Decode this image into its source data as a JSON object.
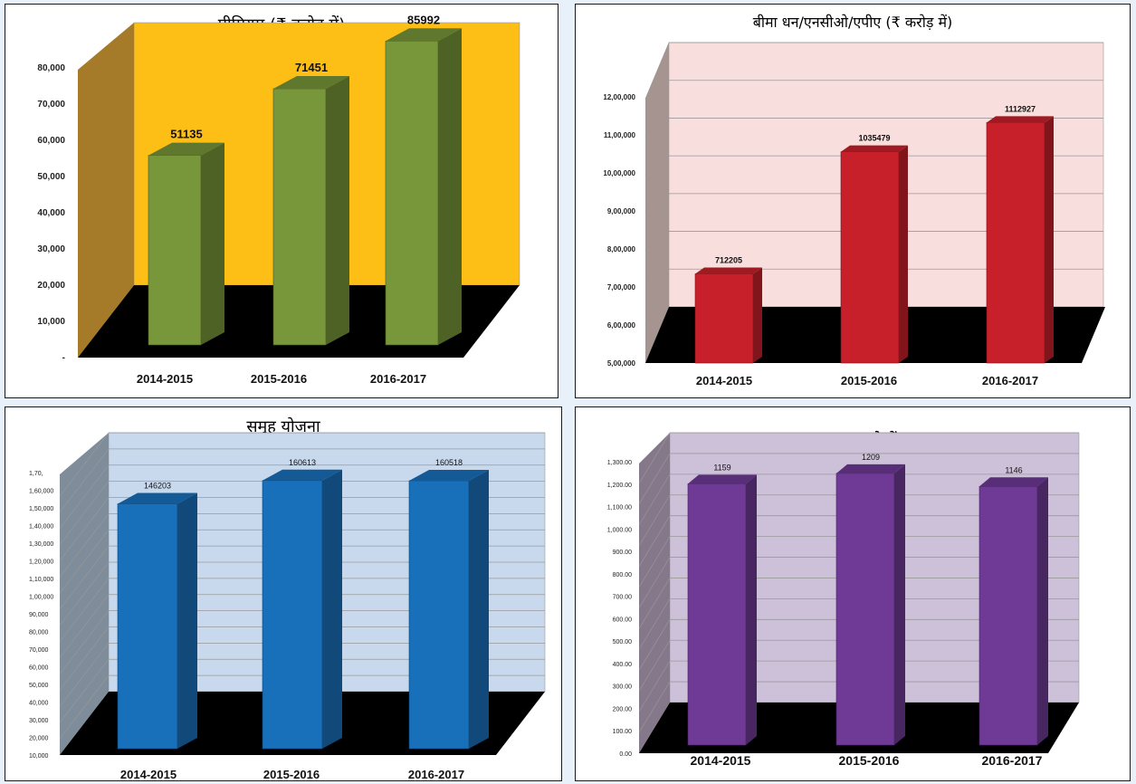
{
  "chart_data": [
    {
      "type": "bar",
      "title": "प्रीमियम (₹ करोड़ में)",
      "categories": [
        "2014-2015",
        "2015-2016",
        "2016-2017"
      ],
      "values": [
        51135,
        71451,
        85992
      ],
      "data_labels": [
        "51135",
        "71451",
        "85992"
      ],
      "ylim": [
        0,
        80000
      ],
      "y_ticks": [
        "-",
        "10,000",
        "20,000",
        "30,000",
        "40,000",
        "50,000",
        "60,000",
        "70,000",
        "80,000"
      ],
      "grid": false,
      "colors": {
        "background": "#fdbf16",
        "bar": "#78963a",
        "side_wall": "#a57b29",
        "floor": "#000000"
      }
    },
    {
      "type": "bar",
      "title": "बीमा धन/एनसीओ/एपीए (₹ करोड़ में)",
      "categories": [
        "2014-2015",
        "2015-2016",
        "2016-2017"
      ],
      "values": [
        712205,
        1035479,
        1112927
      ],
      "data_labels": [
        "712205",
        "1035479",
        "1112927"
      ],
      "ylim": [
        500000,
        1200000
      ],
      "y_ticks": [
        "5,00,000",
        "6,00,000",
        "7,00,000",
        "8,00,000",
        "9,00,000",
        "10,00,000",
        "11,00,000",
        "12,00,000"
      ],
      "grid": true,
      "colors": {
        "background": "#f8dedd",
        "bar": "#c8202a",
        "side_wall": "#a69490",
        "floor": "#000000"
      }
    },
    {
      "type": "bar",
      "title": "समूह योजना",
      "categories": [
        "2014-2015",
        "2015-2016",
        "2016-2017"
      ],
      "values": [
        146203,
        160613,
        160518
      ],
      "data_labels": [
        "146203",
        "160613",
        "160518"
      ],
      "ylim": [
        10000,
        170000
      ],
      "y_ticks": [
        "10,000",
        "20,000",
        "30,000",
        "40,000",
        "50,000",
        "60,000",
        "70,000",
        "80,000",
        "90,000",
        "1,00,000",
        "1,10,000",
        "1,20,000",
        "1,30,000",
        "1,40,000",
        "1,50,000",
        "1,60,000",
        "1,70,"
      ],
      "grid": true,
      "colors": {
        "background": "#c8d9ed",
        "bar": "#1870bb",
        "side_wall": "#7f8d9b",
        "floor": "#000000"
      }
    },
    {
      "type": "bar",
      "title": "सदस्य (लाखो में)",
      "categories": [
        "2014-2015",
        "2015-2016",
        "2016-2017"
      ],
      "values": [
        1159,
        1209,
        1146
      ],
      "data_labels": [
        "1159",
        "1209",
        "1146"
      ],
      "ylim": [
        0,
        1300
      ],
      "y_ticks": [
        "0.00",
        "100.00",
        "200.00",
        "300.00",
        "400.00",
        "500.00",
        "600.00",
        "700.00",
        "800.00",
        "900.00",
        "1,000.00",
        "1,100.00",
        "1,200.00",
        "1,300.00"
      ],
      "grid": true,
      "colors": {
        "background": "#cdc1da",
        "bar": "#6f3a96",
        "side_wall": "#85788a",
        "floor": "#000000"
      }
    }
  ]
}
